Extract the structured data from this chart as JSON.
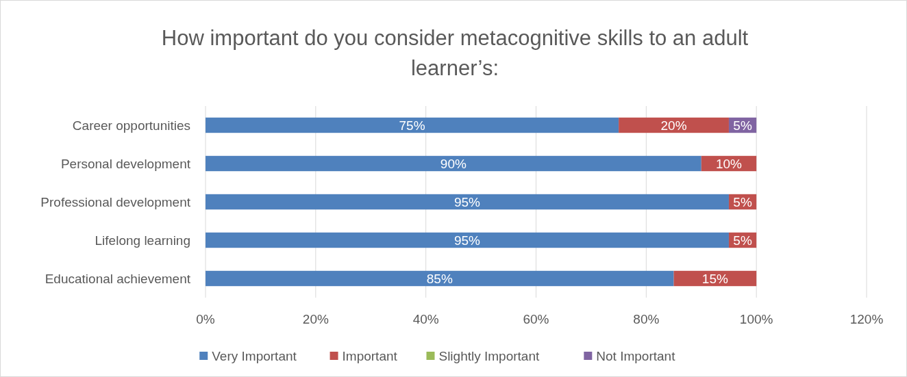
{
  "chart_data": {
    "type": "bar",
    "orientation": "horizontal",
    "stacked": true,
    "title": "How important do you consider metacognitive skills to an adult\nlearner’s:",
    "categories": [
      "Career opportunities",
      "Personal development",
      "Professional development",
      "Lifelong learning",
      "Educational achievement"
    ],
    "series": [
      {
        "name": "Very Important",
        "color": "#4f81bd",
        "values": [
          75,
          90,
          95,
          95,
          85
        ],
        "value_labels": [
          "75%",
          "90%",
          "95%",
          "95%",
          "85%"
        ]
      },
      {
        "name": "Important",
        "color": "#c0504d",
        "values": [
          20,
          10,
          5,
          5,
          15
        ],
        "value_labels": [
          "20%",
          "10%",
          "5%",
          "5%",
          "15%"
        ]
      },
      {
        "name": "Slightly Important",
        "color": "#9bbb59",
        "values": [
          0,
          0,
          0,
          0,
          0
        ],
        "value_labels": [
          null,
          null,
          null,
          null,
          null
        ]
      },
      {
        "name": "Not Important",
        "color": "#8064a2",
        "values": [
          5,
          0,
          0,
          0,
          0
        ],
        "value_labels": [
          "5%",
          null,
          null,
          null,
          null
        ]
      }
    ],
    "xlim": [
      0,
      120
    ],
    "xticks": [
      {
        "value": 0,
        "label": "0%"
      },
      {
        "value": 20,
        "label": "20%"
      },
      {
        "value": 40,
        "label": "40%"
      },
      {
        "value": 60,
        "label": "60%"
      },
      {
        "value": 80,
        "label": "80%"
      },
      {
        "value": 100,
        "label": "100%"
      },
      {
        "value": 120,
        "label": "120%"
      }
    ],
    "grid": "x",
    "legend": "bottom"
  }
}
